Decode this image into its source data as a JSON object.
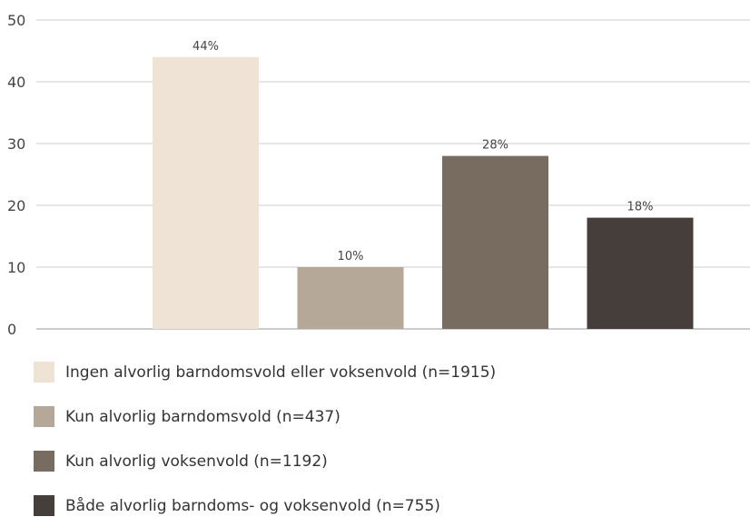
{
  "chart_data": {
    "type": "bar",
    "categories": [
      "Ingen alvorlig barndomsvold eller voksenvold (n=1915)",
      "Kun alvorlig barndomsvold (n=437)",
      "Kun alvorlig voksenvold (n=1192)",
      "Både alvorlig barndoms- og voksenvold (n=755)"
    ],
    "values": [
      44,
      10,
      28,
      18
    ],
    "data_labels": [
      "44%",
      "10%",
      "28%",
      "18%"
    ],
    "colors": [
      "#efe3d5",
      "#b5a899",
      "#786b60",
      "#463e3b"
    ],
    "ylim": [
      0,
      50
    ],
    "yticks": [
      0,
      10,
      20,
      30,
      40,
      50
    ],
    "title": "",
    "xlabel": "",
    "ylabel": "",
    "grid": true,
    "legend_position": "bottom"
  },
  "legend": {
    "items": [
      {
        "label": "Ingen alvorlig barndomsvold eller voksenvold (n=1915)",
        "color": "#efe3d5"
      },
      {
        "label": "Kun alvorlig barndomsvold (n=437)",
        "color": "#b5a899"
      },
      {
        "label": "Kun alvorlig voksenvold (n=1192)",
        "color": "#786b60"
      },
      {
        "label": "Både alvorlig barndoms- og voksenvold (n=755)",
        "color": "#463e3b"
      }
    ]
  }
}
